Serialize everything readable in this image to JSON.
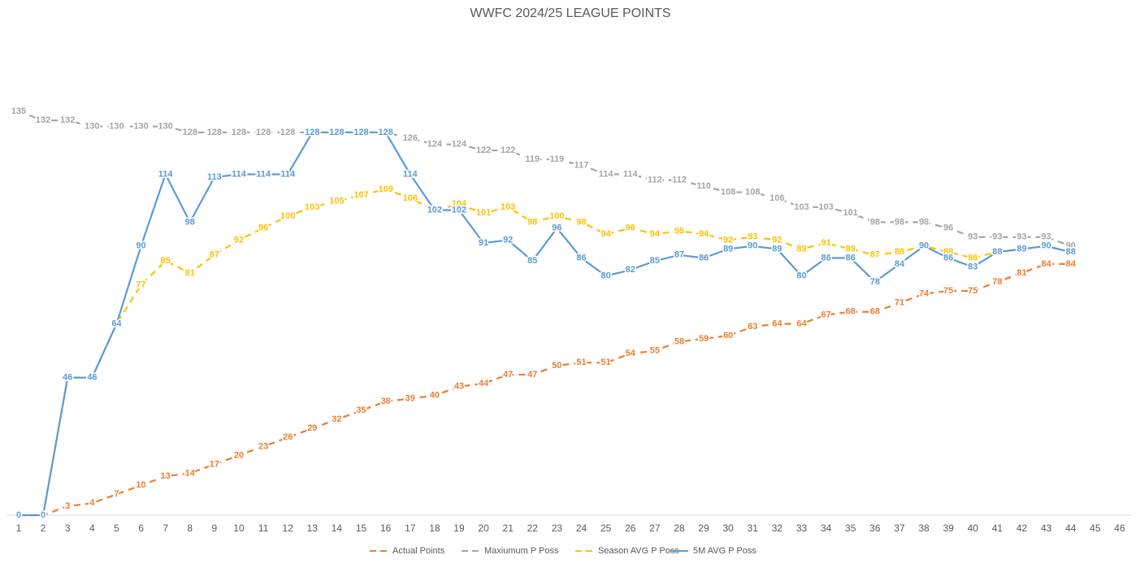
{
  "chart_data": {
    "type": "line",
    "title": "WWFC 2024/25 LEAGUE POINTS",
    "categories": [
      "1",
      "2",
      "3",
      "4",
      "5",
      "6",
      "7",
      "8",
      "9",
      "10",
      "11",
      "12",
      "13",
      "14",
      "15",
      "16",
      "17",
      "18",
      "19",
      "20",
      "21",
      "22",
      "23",
      "24",
      "25",
      "26",
      "27",
      "28",
      "29",
      "30",
      "31",
      "32",
      "33",
      "34",
      "35",
      "36",
      "37",
      "38",
      "39",
      "40",
      "41",
      "42",
      "43",
      "44",
      "45",
      "46"
    ],
    "ylim": [
      0,
      150
    ],
    "legend": "bottom",
    "series": [
      {
        "name": "Actual Points",
        "color": "#ed7d31",
        "dashed": true,
        "values": [
          0,
          0,
          3,
          4,
          7,
          10,
          13,
          14,
          17,
          20,
          23,
          26,
          29,
          32,
          35,
          38,
          39,
          40,
          43,
          44,
          47,
          47,
          50,
          51,
          51,
          54,
          55,
          58,
          59,
          60,
          63,
          64,
          64,
          67,
          68,
          68,
          71,
          74,
          75,
          75,
          78,
          81,
          84,
          84,
          null,
          null
        ]
      },
      {
        "name": "Maxiumum P Poss",
        "color": "#a5a5a5",
        "dashed": true,
        "values": [
          135,
          132,
          132,
          130,
          130,
          130,
          130,
          128,
          128,
          128,
          128,
          128,
          128,
          128,
          128,
          128,
          126,
          124,
          124,
          122,
          122,
          119,
          119,
          117,
          114,
          114,
          112,
          112,
          110,
          108,
          108,
          106,
          103,
          103,
          101,
          98,
          98,
          98,
          96,
          93,
          93,
          93,
          93,
          90,
          null,
          null
        ]
      },
      {
        "name": "Season AVG P Poss",
        "color": "#ffc000",
        "dashed": true,
        "values": [
          0,
          0,
          46,
          46,
          64,
          77,
          85,
          81,
          87,
          92,
          96,
          100,
          103,
          105,
          107,
          109,
          106,
          102,
          104,
          101,
          103,
          98,
          100,
          98,
          94,
          96,
          94,
          95,
          94,
          92,
          93,
          92,
          89,
          91,
          89,
          87,
          88,
          90,
          88,
          86,
          88,
          89,
          90,
          88,
          null,
          null
        ]
      },
      {
        "name": "5M AVG P Poss",
        "color": "#5b9bd5",
        "dashed": false,
        "values": [
          0,
          0,
          46,
          46,
          64,
          90,
          114,
          98,
          113,
          114,
          114,
          114,
          128,
          128,
          128,
          128,
          114,
          102,
          102,
          91,
          92,
          85,
          96,
          86,
          80,
          82,
          85,
          87,
          86,
          89,
          90,
          89,
          80,
          86,
          86,
          78,
          84,
          90,
          86,
          83,
          88,
          89,
          90,
          88,
          null,
          null
        ]
      }
    ]
  }
}
